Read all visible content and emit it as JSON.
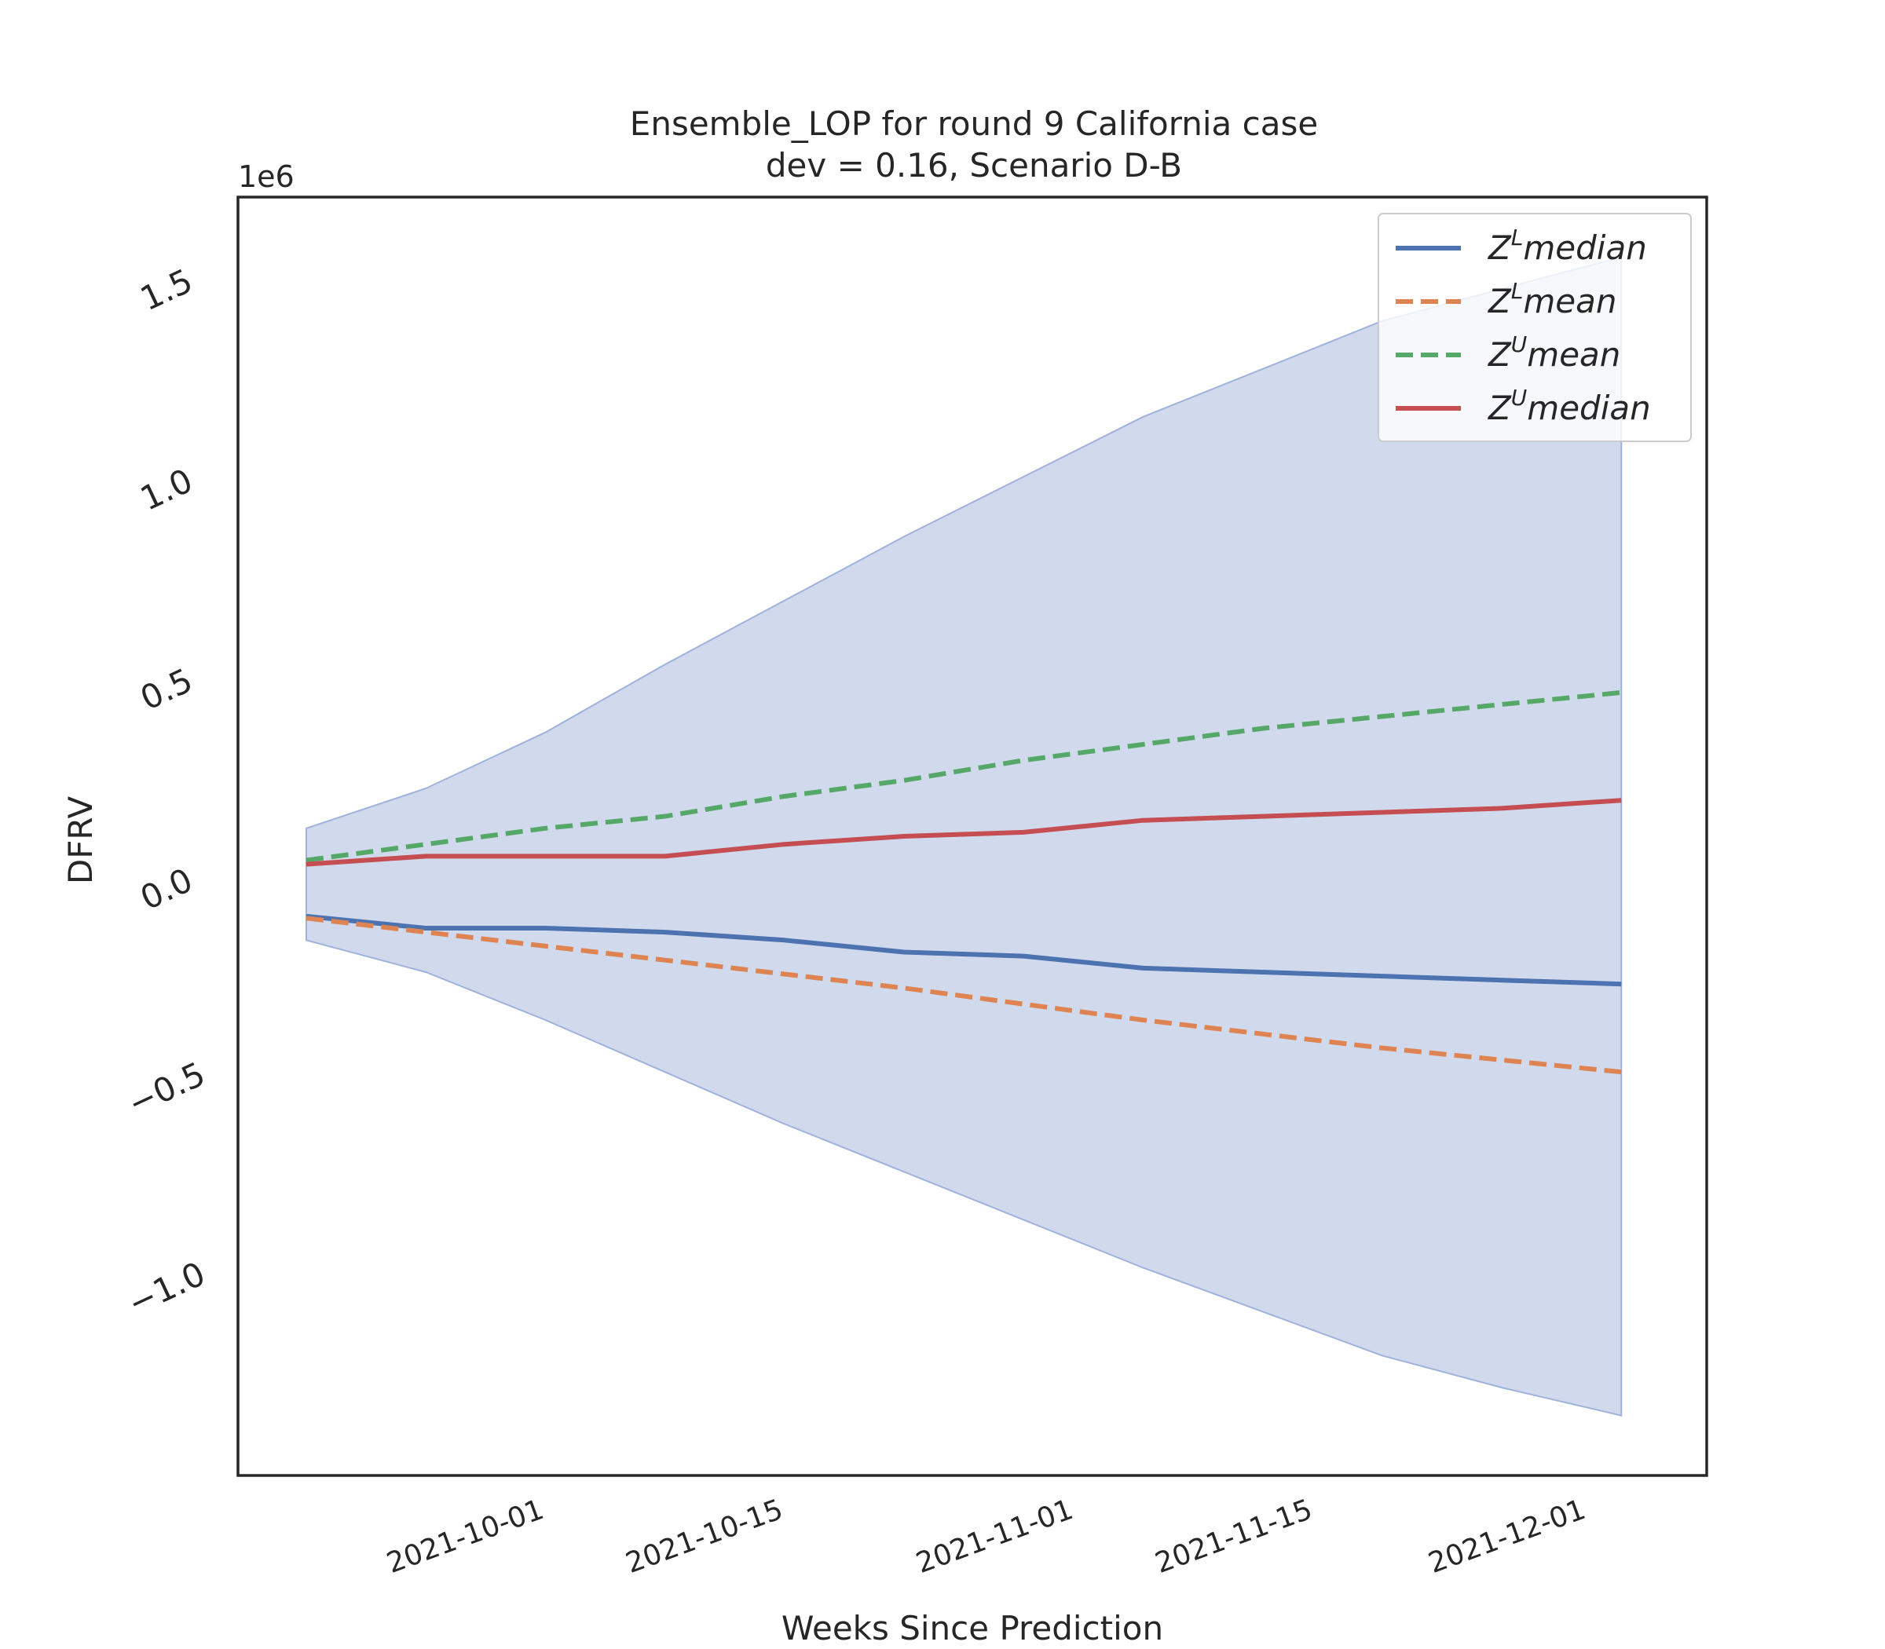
{
  "chart_data": {
    "type": "line",
    "title_line1": "Ensemble_LOP for round 9 California case",
    "title_line2": "dev = 0.16, Scenario D-B",
    "xlabel": "Weeks Since Prediction",
    "ylabel": "DFRV",
    "y_multiplier_label": "1e6",
    "y_scale": 1000000,
    "ylim": [
      -1.45,
      1.75
    ],
    "x_dates": [
      "2021-09-18",
      "2021-09-25",
      "2021-10-02",
      "2021-10-09",
      "2021-10-16",
      "2021-10-23",
      "2021-10-30",
      "2021-11-06",
      "2021-11-13",
      "2021-11-20",
      "2021-11-27",
      "2021-12-04"
    ],
    "xlim": [
      "2021-09-14",
      "2021-12-09"
    ],
    "x_tick_labels": [
      "2021-10-01",
      "2021-10-15",
      "2021-11-01",
      "2021-11-15",
      "2021-12-01"
    ],
    "y_ticks": [
      -1.0,
      -0.5,
      0.0,
      0.5,
      1.0,
      1.5
    ],
    "y_tick_labels": [
      "−1.0",
      "−0.5",
      "0.0",
      "0.5",
      "1.0",
      "1.5"
    ],
    "band": {
      "color": "#b3c2e0",
      "edge_color": "#9fb2dc",
      "upper": [
        0.17,
        0.27,
        0.41,
        0.58,
        0.74,
        0.9,
        1.05,
        1.2,
        1.32,
        1.44,
        1.52,
        1.6
      ],
      "lower": [
        -0.11,
        -0.19,
        -0.31,
        -0.44,
        -0.57,
        -0.69,
        -0.81,
        -0.93,
        -1.04,
        -1.15,
        -1.23,
        -1.3
      ]
    },
    "series": [
      {
        "name_base": "Z",
        "name_sup": "L",
        "name_rest": "median",
        "color": "#4c72b0",
        "dashed": false,
        "values": [
          -0.05,
          -0.08,
          -0.08,
          -0.09,
          -0.11,
          -0.14,
          -0.15,
          -0.18,
          -0.19,
          -0.2,
          -0.21,
          -0.22
        ]
      },
      {
        "name_base": "Z",
        "name_sup": "L",
        "name_rest": "mean",
        "color": "#dd8452",
        "dashed": true,
        "values": [
          -0.055,
          -0.09,
          -0.125,
          -0.16,
          -0.195,
          -0.23,
          -0.27,
          -0.31,
          -0.345,
          -0.38,
          -0.41,
          -0.44
        ]
      },
      {
        "name_base": "Z",
        "name_sup": "U",
        "name_rest": "mean",
        "color": "#55a868",
        "dashed": true,
        "values": [
          0.09,
          0.13,
          0.17,
          0.2,
          0.25,
          0.29,
          0.34,
          0.38,
          0.42,
          0.45,
          0.48,
          0.51
        ]
      },
      {
        "name_base": "Z",
        "name_sup": "U",
        "name_rest": "median",
        "color": "#c44e52",
        "dashed": false,
        "values": [
          0.08,
          0.1,
          0.1,
          0.1,
          0.13,
          0.15,
          0.16,
          0.19,
          0.2,
          0.21,
          0.22,
          0.24
        ]
      }
    ],
    "legend_position": "top-right",
    "grid": false
  }
}
